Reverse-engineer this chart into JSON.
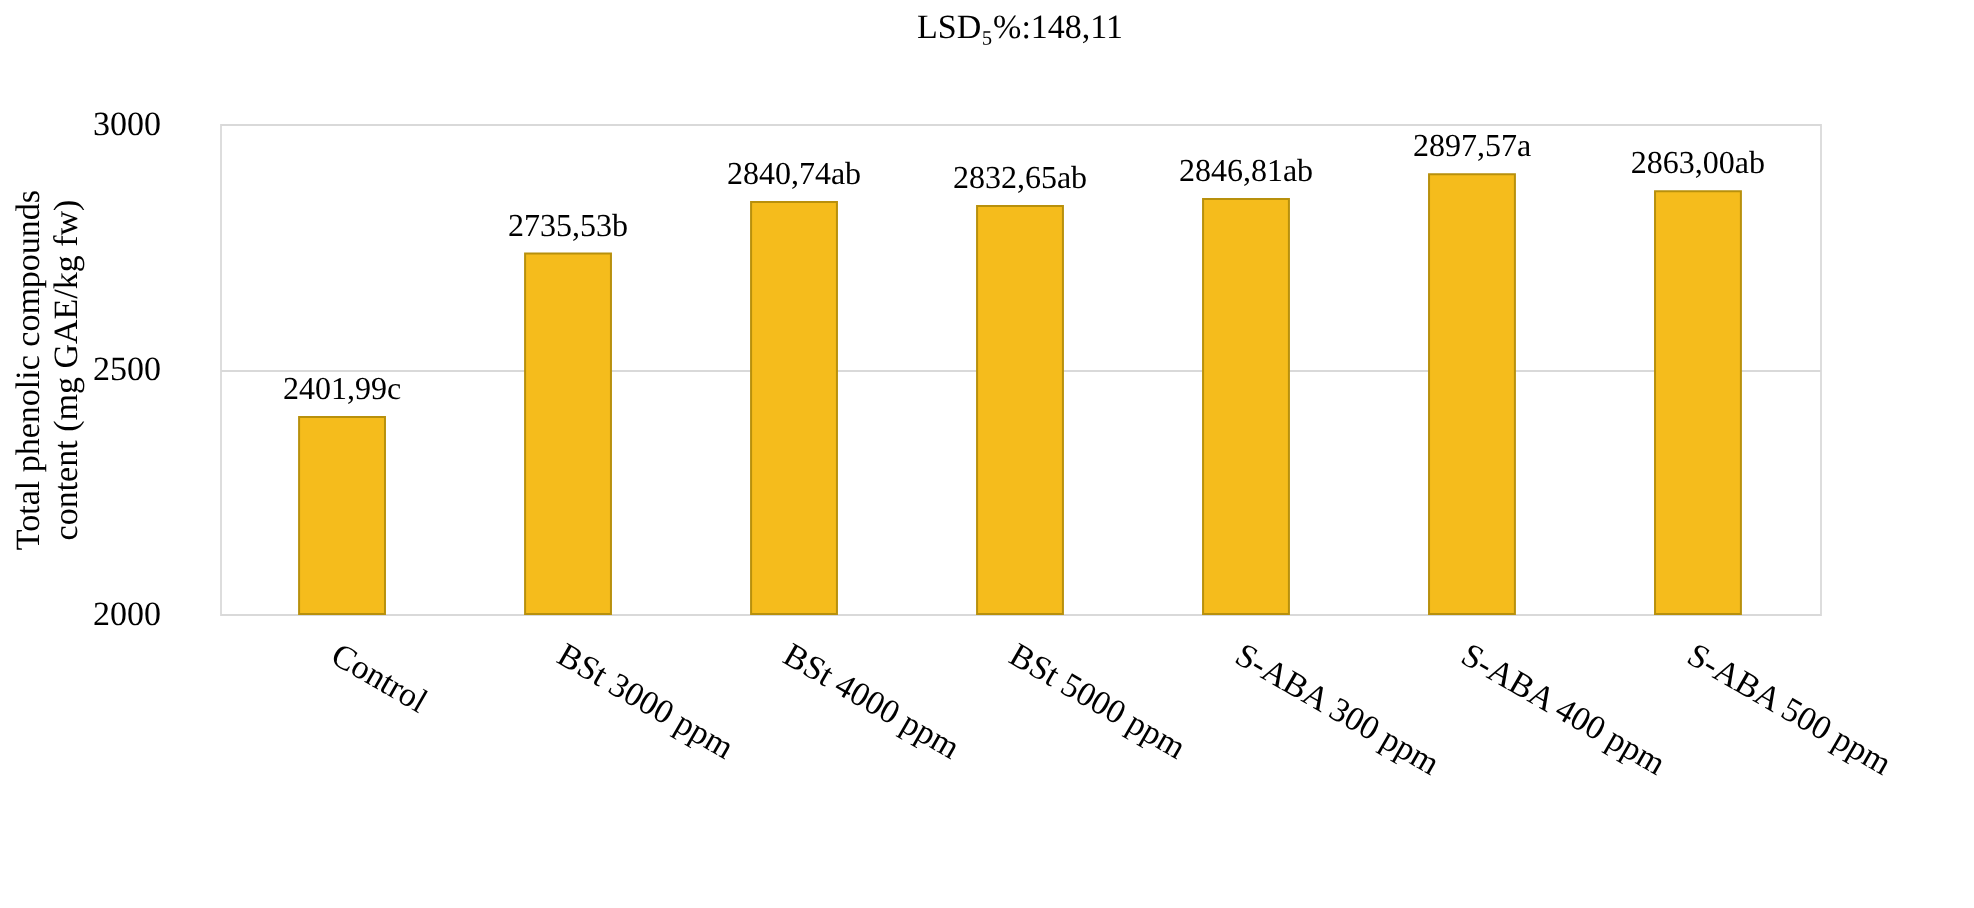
{
  "chart_data": {
    "type": "bar",
    "title": "LSD₅%:148,11",
    "ylabel": "Total phenolic compounds content (mg GAE/kg fw)",
    "categories": [
      "Control",
      "BSt 3000 ppm",
      "BSt 4000 ppm",
      "BSt 5000 ppm",
      "S-ABA 300 ppm",
      "S-ABA 400 ppm",
      "S-ABA 500 ppm"
    ],
    "values": [
      2401.99,
      2735.53,
      2840.74,
      2832.65,
      2846.81,
      2897.57,
      2863.0
    ],
    "value_labels": [
      "2401,99c",
      "2735,53b",
      "2840,74ab",
      "2832,65ab",
      "2846,81ab",
      "2897,57a",
      "2863,00ab"
    ],
    "color": "#f5bc1c",
    "ylim": [
      2000,
      3000
    ],
    "yticks": [
      2000,
      2500,
      3000
    ],
    "grid": "y"
  }
}
